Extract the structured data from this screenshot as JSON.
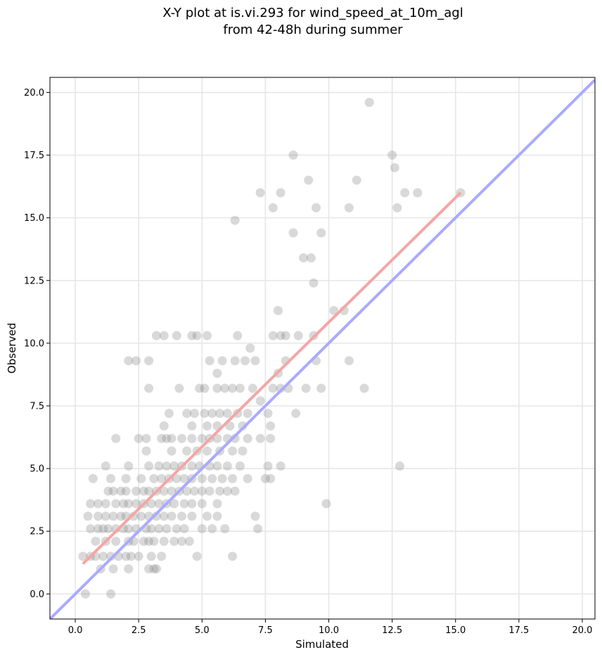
{
  "chart_data": {
    "type": "scatter",
    "title_lines": [
      "X-Y plot at is.vi.293 for wind_speed_at_10m_agl",
      "from 42-48h during summer"
    ],
    "xlabel": "Simulated",
    "ylabel": "Observed",
    "xlim": [
      -1.0,
      20.5
    ],
    "ylim": [
      -1.0,
      20.6
    ],
    "x_ticks": [
      0.0,
      2.5,
      5.0,
      7.5,
      10.0,
      12.5,
      15.0,
      17.5,
      20.0
    ],
    "y_ticks": [
      0.0,
      2.5,
      5.0,
      7.5,
      10.0,
      12.5,
      15.0,
      17.5,
      20.0
    ],
    "tick_labels": {
      "x": [
        "0.0",
        "2.5",
        "5.0",
        "7.5",
        "10.0",
        "12.5",
        "15.0",
        "17.5",
        "20.0"
      ],
      "y": [
        "0.0",
        "2.5",
        "5.0",
        "7.5",
        "10.0",
        "12.5",
        "15.0",
        "17.5",
        "20.0"
      ]
    },
    "grid": true,
    "point_color": "#808080",
    "one_to_one_line": {
      "color": "#aaaaff",
      "x": [
        -1.0,
        20.5
      ],
      "y": [
        -1.0,
        20.5
      ]
    },
    "fit_line": {
      "color": "#f4a6a6",
      "x": [
        0.3,
        15.2
      ],
      "y": [
        1.2,
        16.0
      ]
    },
    "points": [
      [
        0.4,
        0.0
      ],
      [
        1.4,
        0.0
      ],
      [
        1.0,
        1.0
      ],
      [
        1.5,
        1.0
      ],
      [
        2.1,
        1.0
      ],
      [
        2.9,
        1.0
      ],
      [
        3.1,
        1.0
      ],
      [
        3.2,
        1.0
      ],
      [
        0.3,
        1.5
      ],
      [
        0.6,
        1.5
      ],
      [
        0.8,
        1.5
      ],
      [
        1.1,
        1.5
      ],
      [
        1.4,
        1.5
      ],
      [
        1.7,
        1.5
      ],
      [
        2.0,
        1.5
      ],
      [
        2.2,
        1.5
      ],
      [
        2.5,
        1.5
      ],
      [
        3.0,
        1.5
      ],
      [
        3.4,
        1.5
      ],
      [
        4.8,
        1.5
      ],
      [
        6.2,
        1.5
      ],
      [
        0.8,
        2.1
      ],
      [
        1.2,
        2.1
      ],
      [
        1.6,
        2.1
      ],
      [
        2.1,
        2.1
      ],
      [
        2.3,
        2.1
      ],
      [
        2.7,
        2.1
      ],
      [
        2.9,
        2.1
      ],
      [
        3.1,
        2.1
      ],
      [
        3.5,
        2.1
      ],
      [
        3.9,
        2.1
      ],
      [
        4.2,
        2.1
      ],
      [
        4.5,
        2.1
      ],
      [
        0.6,
        2.6
      ],
      [
        0.9,
        2.6
      ],
      [
        1.1,
        2.6
      ],
      [
        1.3,
        2.6
      ],
      [
        1.6,
        2.6
      ],
      [
        1.9,
        2.6
      ],
      [
        2.1,
        2.6
      ],
      [
        2.4,
        2.6
      ],
      [
        2.8,
        2.6
      ],
      [
        3.0,
        2.6
      ],
      [
        3.3,
        2.6
      ],
      [
        3.6,
        2.6
      ],
      [
        4.0,
        2.6
      ],
      [
        4.3,
        2.6
      ],
      [
        5.0,
        2.6
      ],
      [
        5.4,
        2.6
      ],
      [
        5.9,
        2.6
      ],
      [
        7.2,
        2.6
      ],
      [
        0.5,
        3.1
      ],
      [
        0.9,
        3.1
      ],
      [
        1.2,
        3.1
      ],
      [
        1.5,
        3.1
      ],
      [
        1.8,
        3.1
      ],
      [
        2.0,
        3.1
      ],
      [
        2.3,
        3.1
      ],
      [
        2.6,
        3.1
      ],
      [
        2.9,
        3.1
      ],
      [
        3.2,
        3.1
      ],
      [
        3.5,
        3.1
      ],
      [
        3.8,
        3.1
      ],
      [
        4.2,
        3.1
      ],
      [
        4.6,
        3.1
      ],
      [
        5.2,
        3.1
      ],
      [
        5.6,
        3.1
      ],
      [
        7.1,
        3.1
      ],
      [
        0.6,
        3.6
      ],
      [
        0.9,
        3.6
      ],
      [
        1.2,
        3.6
      ],
      [
        1.6,
        3.6
      ],
      [
        1.9,
        3.6
      ],
      [
        2.1,
        3.6
      ],
      [
        2.4,
        3.6
      ],
      [
        2.7,
        3.6
      ],
      [
        3.0,
        3.6
      ],
      [
        3.3,
        3.6
      ],
      [
        3.6,
        3.6
      ],
      [
        3.9,
        3.6
      ],
      [
        4.3,
        3.6
      ],
      [
        4.6,
        3.6
      ],
      [
        5.0,
        3.6
      ],
      [
        5.6,
        3.6
      ],
      [
        9.9,
        3.6
      ],
      [
        1.3,
        4.1
      ],
      [
        1.5,
        4.1
      ],
      [
        1.8,
        4.1
      ],
      [
        2.0,
        4.1
      ],
      [
        2.4,
        4.1
      ],
      [
        2.7,
        4.1
      ],
      [
        2.9,
        4.1
      ],
      [
        3.2,
        4.1
      ],
      [
        3.5,
        4.1
      ],
      [
        3.8,
        4.1
      ],
      [
        4.1,
        4.1
      ],
      [
        4.4,
        4.1
      ],
      [
        4.7,
        4.1
      ],
      [
        5.0,
        4.1
      ],
      [
        5.3,
        4.1
      ],
      [
        5.7,
        4.1
      ],
      [
        6.0,
        4.1
      ],
      [
        6.3,
        4.1
      ],
      [
        0.7,
        4.6
      ],
      [
        1.4,
        4.6
      ],
      [
        2.0,
        4.6
      ],
      [
        2.6,
        4.6
      ],
      [
        3.1,
        4.6
      ],
      [
        3.4,
        4.6
      ],
      [
        3.7,
        4.6
      ],
      [
        4.0,
        4.6
      ],
      [
        4.3,
        4.6
      ],
      [
        4.6,
        4.6
      ],
      [
        5.0,
        4.6
      ],
      [
        5.4,
        4.6
      ],
      [
        5.8,
        4.6
      ],
      [
        6.2,
        4.6
      ],
      [
        6.8,
        4.6
      ],
      [
        7.5,
        4.6
      ],
      [
        7.7,
        4.6
      ],
      [
        1.2,
        5.1
      ],
      [
        2.1,
        5.1
      ],
      [
        2.9,
        5.1
      ],
      [
        3.3,
        5.1
      ],
      [
        3.6,
        5.1
      ],
      [
        3.9,
        5.1
      ],
      [
        4.2,
        5.1
      ],
      [
        4.6,
        5.1
      ],
      [
        4.9,
        5.1
      ],
      [
        5.3,
        5.1
      ],
      [
        5.6,
        5.1
      ],
      [
        6.0,
        5.1
      ],
      [
        6.5,
        5.1
      ],
      [
        7.6,
        5.1
      ],
      [
        8.1,
        5.1
      ],
      [
        12.8,
        5.1
      ],
      [
        2.8,
        5.7
      ],
      [
        3.8,
        5.7
      ],
      [
        4.4,
        5.7
      ],
      [
        4.8,
        5.7
      ],
      [
        5.2,
        5.7
      ],
      [
        5.7,
        5.7
      ],
      [
        6.2,
        5.7
      ],
      [
        6.6,
        5.7
      ],
      [
        1.6,
        6.2
      ],
      [
        2.5,
        6.2
      ],
      [
        2.8,
        6.2
      ],
      [
        3.4,
        6.2
      ],
      [
        3.6,
        6.2
      ],
      [
        3.8,
        6.2
      ],
      [
        4.2,
        6.2
      ],
      [
        4.6,
        6.2
      ],
      [
        5.0,
        6.2
      ],
      [
        5.3,
        6.2
      ],
      [
        5.6,
        6.2
      ],
      [
        6.0,
        6.2
      ],
      [
        6.3,
        6.2
      ],
      [
        6.8,
        6.2
      ],
      [
        7.3,
        6.2
      ],
      [
        7.7,
        6.2
      ],
      [
        3.5,
        6.7
      ],
      [
        4.6,
        6.7
      ],
      [
        5.2,
        6.7
      ],
      [
        5.6,
        6.7
      ],
      [
        6.1,
        6.7
      ],
      [
        6.6,
        6.7
      ],
      [
        7.7,
        6.7
      ],
      [
        3.7,
        7.2
      ],
      [
        4.4,
        7.2
      ],
      [
        4.7,
        7.2
      ],
      [
        5.1,
        7.2
      ],
      [
        5.4,
        7.2
      ],
      [
        5.7,
        7.2
      ],
      [
        6.0,
        7.2
      ],
      [
        6.4,
        7.2
      ],
      [
        6.8,
        7.2
      ],
      [
        7.6,
        7.2
      ],
      [
        8.7,
        7.2
      ],
      [
        7.3,
        7.7
      ],
      [
        2.9,
        8.2
      ],
      [
        4.1,
        8.2
      ],
      [
        4.9,
        8.2
      ],
      [
        5.1,
        8.2
      ],
      [
        5.6,
        8.2
      ],
      [
        5.9,
        8.2
      ],
      [
        6.2,
        8.2
      ],
      [
        6.5,
        8.2
      ],
      [
        7.0,
        8.2
      ],
      [
        7.8,
        8.2
      ],
      [
        8.1,
        8.2
      ],
      [
        8.4,
        8.2
      ],
      [
        9.1,
        8.2
      ],
      [
        9.7,
        8.2
      ],
      [
        11.4,
        8.2
      ],
      [
        5.6,
        8.8
      ],
      [
        8.0,
        8.8
      ],
      [
        2.1,
        9.3
      ],
      [
        2.4,
        9.3
      ],
      [
        2.9,
        9.3
      ],
      [
        5.3,
        9.3
      ],
      [
        5.8,
        9.3
      ],
      [
        6.3,
        9.3
      ],
      [
        6.7,
        9.3
      ],
      [
        7.1,
        9.3
      ],
      [
        8.3,
        9.3
      ],
      [
        9.5,
        9.3
      ],
      [
        10.8,
        9.3
      ],
      [
        6.9,
        9.8
      ],
      [
        3.2,
        10.3
      ],
      [
        3.5,
        10.3
      ],
      [
        4.0,
        10.3
      ],
      [
        4.6,
        10.3
      ],
      [
        4.8,
        10.3
      ],
      [
        5.2,
        10.3
      ],
      [
        6.4,
        10.3
      ],
      [
        7.8,
        10.3
      ],
      [
        8.1,
        10.3
      ],
      [
        8.3,
        10.3
      ],
      [
        8.8,
        10.3
      ],
      [
        9.4,
        10.3
      ],
      [
        8.0,
        11.3
      ],
      [
        10.2,
        11.3
      ],
      [
        10.6,
        11.3
      ],
      [
        9.4,
        12.4
      ],
      [
        9.0,
        13.4
      ],
      [
        9.3,
        13.4
      ],
      [
        8.6,
        14.4
      ],
      [
        9.7,
        14.4
      ],
      [
        6.3,
        14.9
      ],
      [
        7.8,
        15.4
      ],
      [
        9.5,
        15.4
      ],
      [
        10.8,
        15.4
      ],
      [
        12.7,
        15.4
      ],
      [
        7.3,
        16.0
      ],
      [
        8.1,
        16.0
      ],
      [
        13.0,
        16.0
      ],
      [
        13.5,
        16.0
      ],
      [
        15.2,
        16.0
      ],
      [
        9.2,
        16.5
      ],
      [
        11.1,
        16.5
      ],
      [
        12.6,
        17.0
      ],
      [
        8.6,
        17.5
      ],
      [
        12.5,
        17.5
      ],
      [
        11.6,
        19.6
      ]
    ]
  }
}
